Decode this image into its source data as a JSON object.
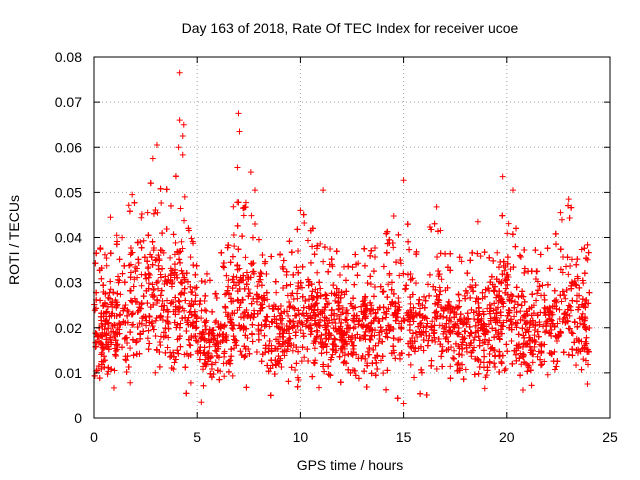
{
  "chart_data": {
    "type": "scatter",
    "title": "Day 163 of 2018, Rate Of TEC Index for receiver ucoe",
    "xlabel": "GPS time / hours",
    "ylabel": "ROTI / TECUs",
    "xlim": [
      0,
      25
    ],
    "ylim": [
      0,
      0.08
    ],
    "x_ticks": [
      "0",
      "5",
      "10",
      "15",
      "20",
      "25"
    ],
    "y_ticks": [
      "0",
      "0.01",
      "0.02",
      "0.03",
      "0.04",
      "0.05",
      "0.06",
      "0.07",
      "0.08"
    ],
    "grid": true,
    "marker": "+",
    "color": "#ff0000",
    "series": [
      {
        "x_start": 0,
        "x_end": 24,
        "typical_range": [
          0.008,
          0.032
        ],
        "notable_points": [
          {
            "x": 4.15,
            "y": 0.0765
          },
          {
            "x": 7.0,
            "y": 0.0675
          },
          {
            "x": 4.15,
            "y": 0.066
          },
          {
            "x": 4.35,
            "y": 0.065
          },
          {
            "x": 7.05,
            "y": 0.0635
          },
          {
            "x": 4.3,
            "y": 0.0625
          },
          {
            "x": 3.05,
            "y": 0.0605
          },
          {
            "x": 4.1,
            "y": 0.06
          },
          {
            "x": 4.3,
            "y": 0.0583
          },
          {
            "x": 2.85,
            "y": 0.0575
          },
          {
            "x": 6.95,
            "y": 0.0555
          },
          {
            "x": 7.6,
            "y": 0.0545
          },
          {
            "x": 19.8,
            "y": 0.0535
          },
          {
            "x": 15.0,
            "y": 0.0527
          },
          {
            "x": 11.1,
            "y": 0.0505
          },
          {
            "x": 7.8,
            "y": 0.0505
          },
          {
            "x": 20.3,
            "y": 0.0505
          },
          {
            "x": 1.85,
            "y": 0.0495
          },
          {
            "x": 4.4,
            "y": 0.049
          },
          {
            "x": 23.0,
            "y": 0.0485
          },
          {
            "x": 16.6,
            "y": 0.0468
          },
          {
            "x": 18.6,
            "y": 0.0435
          },
          {
            "x": 2.6,
            "y": 0.0455
          },
          {
            "x": 10.0,
            "y": 0.046
          },
          {
            "x": 22.6,
            "y": 0.0455
          },
          {
            "x": 0.8,
            "y": 0.0445
          },
          {
            "x": 1.1,
            "y": 0.0405
          },
          {
            "x": 14.5,
            "y": 0.0378
          },
          {
            "x": 5.2,
            "y": 0.0035
          },
          {
            "x": 15.0,
            "y": 0.0032
          }
        ]
      }
    ]
  }
}
